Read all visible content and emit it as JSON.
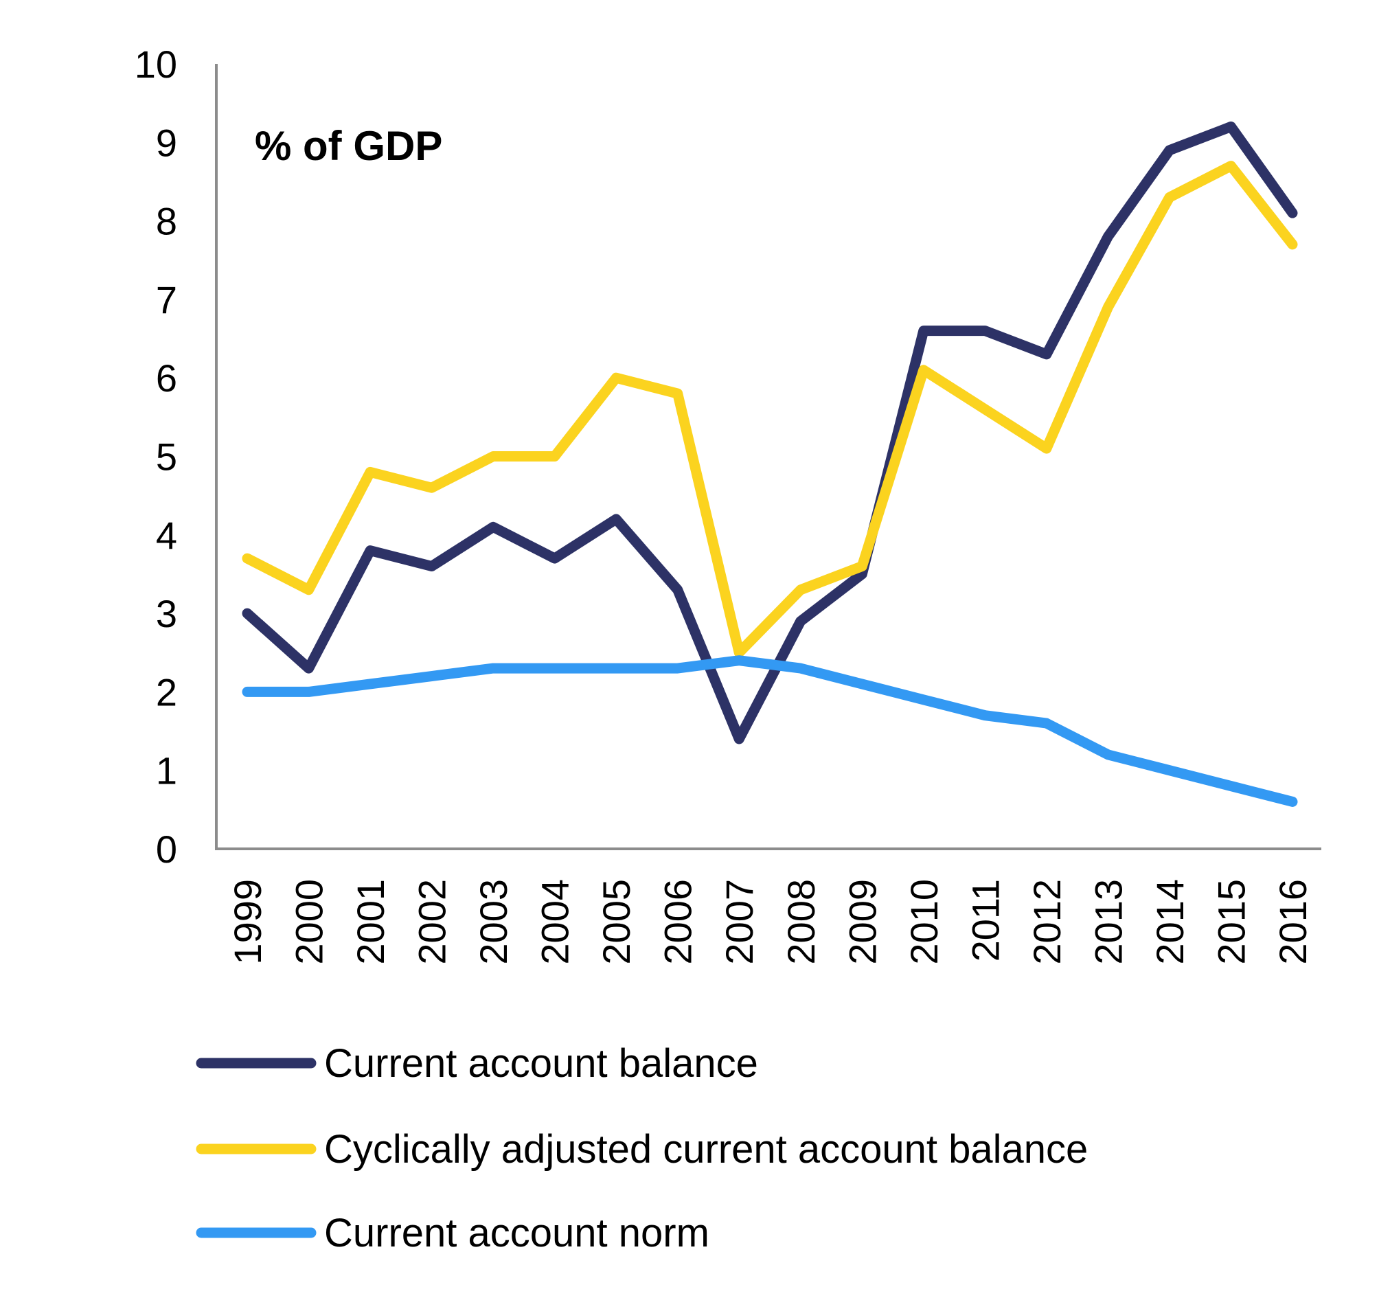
{
  "chart_data": {
    "type": "line",
    "title": "% of GDP",
    "xlabel": "",
    "ylabel": "",
    "ylim": [
      0,
      10
    ],
    "yticks": [
      "0",
      "1",
      "2",
      "3",
      "4",
      "5",
      "6",
      "7",
      "8",
      "9",
      "10"
    ],
    "grid": false,
    "legend": "bottom",
    "categories": [
      "1999",
      "2000",
      "2001",
      "2002",
      "2003",
      "2004",
      "2005",
      "2006",
      "2007",
      "2008",
      "2009",
      "2010",
      "2011",
      "2012",
      "2013",
      "2014",
      "2015",
      "2016"
    ],
    "series": [
      {
        "name": "Current account balance",
        "color": "#2d3266",
        "values": [
          3.0,
          2.3,
          3.8,
          3.6,
          4.1,
          3.7,
          4.2,
          3.3,
          1.4,
          2.9,
          3.5,
          6.6,
          6.6,
          6.3,
          7.8,
          8.9,
          9.2,
          8.1
        ]
      },
      {
        "name": "Cyclically adjusted current account balance",
        "color": "#fbd31f",
        "values": [
          3.7,
          3.3,
          4.8,
          4.6,
          5.0,
          5.0,
          6.0,
          5.8,
          2.5,
          3.3,
          3.6,
          6.1,
          5.6,
          5.1,
          6.9,
          8.3,
          8.7,
          7.7
        ]
      },
      {
        "name": "Current account norm",
        "color": "#3399f3",
        "values": [
          2.0,
          2.0,
          2.1,
          2.2,
          2.3,
          2.3,
          2.3,
          2.3,
          2.4,
          2.3,
          2.1,
          1.9,
          1.7,
          1.6,
          1.2,
          1.0,
          0.8,
          0.6
        ]
      }
    ]
  }
}
